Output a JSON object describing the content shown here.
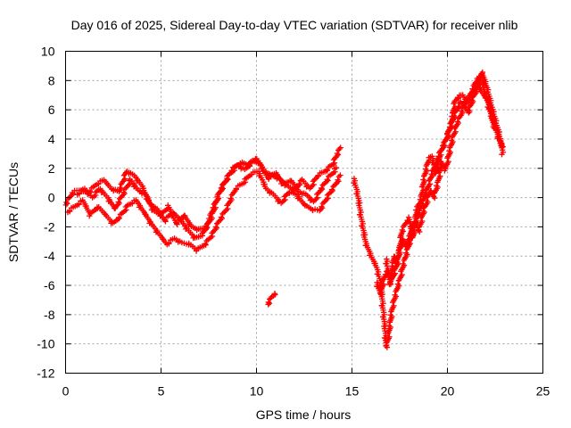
{
  "chart_data": {
    "type": "scatter",
    "title": "Day 016 of 2025, Sidereal Day-to-day VTEC variation (SDTVAR) for receiver nlib",
    "xlabel": "GPS time / hours",
    "ylabel": "SDTVAR / TECUs",
    "xlim": [
      0,
      25
    ],
    "ylim": [
      -12,
      10
    ],
    "xticks": [
      0,
      5,
      10,
      15,
      20,
      25
    ],
    "yticks": [
      -12,
      -10,
      -8,
      -6,
      -4,
      -2,
      0,
      2,
      4,
      6,
      8,
      10
    ],
    "grid": true,
    "marker": "+",
    "series": [
      {
        "name": "SDTVAR",
        "color": "#ff0000",
        "segments": [
          [
            [
              0.0,
              -0.5
            ],
            [
              0.4,
              0.4
            ],
            [
              0.8,
              0.5
            ],
            [
              1.2,
              0.3
            ],
            [
              1.6,
              0.9
            ],
            [
              2.0,
              1.2
            ],
            [
              2.4,
              0.6
            ],
            [
              2.8,
              0.4
            ],
            [
              3.2,
              1.8
            ],
            [
              3.6,
              1.5
            ],
            [
              4.0,
              0.8
            ],
            [
              4.4,
              -0.4
            ],
            [
              4.8,
              -0.8
            ],
            [
              5.2,
              -1.6
            ],
            [
              5.6,
              -1.0
            ],
            [
              6.0,
              -1.5
            ],
            [
              6.4,
              -2.2
            ],
            [
              6.8,
              -2.8
            ],
            [
              7.2,
              -2.5
            ],
            [
              7.6,
              -1.5
            ],
            [
              8.0,
              0.1
            ],
            [
              8.4,
              1.2
            ],
            [
              8.8,
              2.0
            ],
            [
              9.2,
              2.4
            ],
            [
              9.6,
              2.2
            ],
            [
              10.0,
              2.7
            ],
            [
              10.4,
              1.8
            ],
            [
              10.8,
              1.5
            ],
            [
              11.2,
              1.3
            ],
            [
              11.6,
              0.8
            ],
            [
              12.0,
              0.5
            ],
            [
              12.4,
              1.2
            ],
            [
              12.8,
              0.6
            ],
            [
              13.2,
              1.5
            ],
            [
              13.6,
              1.8
            ],
            [
              14.0,
              2.3
            ],
            [
              14.4,
              3.4
            ]
          ],
          [
            [
              0.1,
              -1.0
            ],
            [
              0.5,
              -0.6
            ],
            [
              0.9,
              -0.2
            ],
            [
              1.3,
              -1.2
            ],
            [
              1.7,
              -0.6
            ],
            [
              2.1,
              -1.2
            ],
            [
              2.5,
              -1.8
            ],
            [
              2.9,
              -1.2
            ],
            [
              3.3,
              -0.5
            ],
            [
              3.7,
              -0.2
            ],
            [
              4.1,
              -1.0
            ],
            [
              4.5,
              -1.8
            ],
            [
              4.9,
              -2.5
            ],
            [
              5.3,
              -3.2
            ],
            [
              5.7,
              -2.8
            ],
            [
              6.1,
              -3.1
            ],
            [
              6.5,
              -3.2
            ],
            [
              6.9,
              -3.6
            ],
            [
              7.3,
              -3.2
            ],
            [
              7.7,
              -2.5
            ],
            [
              8.1,
              -1.5
            ],
            [
              8.5,
              -0.6
            ],
            [
              8.9,
              0.6
            ],
            [
              9.3,
              1.0
            ],
            [
              9.7,
              1.6
            ],
            [
              10.1,
              1.8
            ],
            [
              10.5,
              0.6
            ],
            [
              10.9,
              0.2
            ],
            [
              11.3,
              -0.4
            ],
            [
              11.7,
              0.4
            ],
            [
              12.1,
              0.2
            ],
            [
              12.5,
              -0.5
            ],
            [
              12.9,
              -0.8
            ],
            [
              13.3,
              -0.9
            ],
            [
              13.7,
              0.0
            ],
            [
              14.1,
              0.8
            ],
            [
              14.4,
              1.5
            ]
          ],
          [
            [
              0.6,
              0.2
            ],
            [
              1.0,
              0.6
            ],
            [
              1.4,
              0.0
            ],
            [
              1.8,
              0.6
            ],
            [
              2.2,
              0.0
            ],
            [
              2.6,
              -0.8
            ],
            [
              3.0,
              0.2
            ],
            [
              3.4,
              1.2
            ],
            [
              3.8,
              0.5
            ],
            [
              4.2,
              0.2
            ],
            [
              4.6,
              -0.9
            ],
            [
              5.0,
              -1.2
            ],
            [
              5.4,
              -0.6
            ],
            [
              5.8,
              -1.8
            ],
            [
              6.2,
              -1.2
            ],
            [
              6.6,
              -2.0
            ],
            [
              7.0,
              -2.2
            ],
            [
              7.4,
              -2.0
            ],
            [
              7.8,
              -0.5
            ],
            [
              8.2,
              0.7
            ],
            [
              8.6,
              1.6
            ],
            [
              9.0,
              2.2
            ],
            [
              9.4,
              1.9
            ],
            [
              9.8,
              2.5
            ],
            [
              10.2,
              2.3
            ],
            [
              10.6,
              1.3
            ],
            [
              11.0,
              1.7
            ],
            [
              11.4,
              0.9
            ],
            [
              11.8,
              1.2
            ],
            [
              12.2,
              0.4
            ],
            [
              12.6,
              0.2
            ],
            [
              13.0,
              -0.3
            ],
            [
              13.4,
              0.6
            ],
            [
              13.8,
              1.4
            ],
            [
              14.2,
              2.0
            ]
          ],
          [
            [
              10.6,
              -7.3
            ],
            [
              10.8,
              -6.8
            ],
            [
              11.0,
              -6.5
            ]
          ],
          [
            [
              15.1,
              1.3
            ],
            [
              15.3,
              0.2
            ],
            [
              15.5,
              -1.5
            ],
            [
              15.7,
              -3.0
            ],
            [
              16.0,
              -4.0
            ],
            [
              16.3,
              -4.8
            ],
            [
              16.5,
              -5.8
            ],
            [
              16.6,
              -7.2
            ],
            [
              16.7,
              -8.6
            ],
            [
              16.8,
              -10.2
            ],
            [
              16.9,
              -9.6
            ],
            [
              17.0,
              -8.7
            ],
            [
              17.1,
              -7.6
            ],
            [
              17.3,
              -6.6
            ],
            [
              17.5,
              -5.6
            ],
            [
              17.7,
              -4.6
            ],
            [
              17.9,
              -3.6
            ],
            [
              18.1,
              -2.6
            ],
            [
              18.3,
              -1.9
            ],
            [
              18.5,
              -1.0
            ],
            [
              18.7,
              -0.5
            ],
            [
              18.9,
              0.4
            ],
            [
              19.1,
              1.2
            ],
            [
              19.3,
              2.0
            ],
            [
              19.5,
              2.6
            ],
            [
              19.7,
              3.2
            ],
            [
              19.9,
              3.8
            ],
            [
              20.1,
              4.6
            ],
            [
              20.3,
              5.3
            ],
            [
              20.5,
              6.0
            ],
            [
              20.7,
              6.5
            ],
            [
              20.9,
              6.2
            ],
            [
              21.1,
              5.8
            ],
            [
              21.3,
              6.6
            ],
            [
              21.5,
              7.3
            ],
            [
              21.7,
              8.0
            ],
            [
              21.8,
              8.6
            ],
            [
              21.9,
              8.2
            ],
            [
              22.1,
              7.4
            ],
            [
              22.3,
              6.3
            ],
            [
              22.5,
              5.4
            ],
            [
              22.7,
              4.4
            ],
            [
              22.9,
              3.0
            ]
          ],
          [
            [
              16.3,
              -5.8
            ],
            [
              16.5,
              -6.6
            ],
            [
              16.7,
              -5.4
            ],
            [
              16.9,
              -5.0
            ],
            [
              17.1,
              -5.6
            ],
            [
              17.3,
              -4.8
            ],
            [
              17.5,
              -3.6
            ],
            [
              17.7,
              -2.9
            ],
            [
              17.9,
              -3.4
            ],
            [
              18.1,
              -2.2
            ],
            [
              18.3,
              -1.6
            ],
            [
              18.5,
              -2.3
            ],
            [
              18.7,
              -1.2
            ],
            [
              18.9,
              -0.4
            ],
            [
              19.1,
              0.5
            ],
            [
              19.3,
              0.0
            ],
            [
              19.5,
              1.0
            ],
            [
              19.7,
              2.4
            ],
            [
              19.9,
              1.9
            ],
            [
              20.1,
              3.0
            ],
            [
              20.3,
              4.2
            ],
            [
              20.5,
              5.0
            ],
            [
              20.7,
              5.6
            ],
            [
              20.9,
              6.6
            ],
            [
              21.1,
              6.8
            ],
            [
              21.3,
              6.9
            ],
            [
              21.5,
              7.8
            ],
            [
              21.7,
              7.4
            ],
            [
              21.9,
              7.0
            ],
            [
              22.1,
              6.8
            ],
            [
              22.3,
              5.8
            ],
            [
              22.5,
              4.8
            ],
            [
              22.7,
              4.0
            ],
            [
              22.9,
              3.4
            ]
          ],
          [
            [
              16.8,
              -4.2
            ],
            [
              17.0,
              -6.0
            ],
            [
              17.2,
              -4.0
            ],
            [
              17.4,
              -4.5
            ],
            [
              17.6,
              -2.4
            ],
            [
              17.8,
              -1.8
            ],
            [
              18.0,
              -1.4
            ],
            [
              18.2,
              -2.8
            ],
            [
              18.4,
              -0.8
            ],
            [
              18.6,
              -0.2
            ],
            [
              18.8,
              1.4
            ],
            [
              19.0,
              2.6
            ],
            [
              19.2,
              2.8
            ],
            [
              19.4,
              1.6
            ],
            [
              19.6,
              3.0
            ],
            [
              19.8,
              3.6
            ],
            [
              20.0,
              4.2
            ],
            [
              20.2,
              5.0
            ],
            [
              20.4,
              6.6
            ],
            [
              20.6,
              6.9
            ],
            [
              20.8,
              7.0
            ],
            [
              21.0,
              6.4
            ],
            [
              21.2,
              7.0
            ],
            [
              21.4,
              7.6
            ],
            [
              21.6,
              8.2
            ],
            [
              21.8,
              8.0
            ],
            [
              22.0,
              7.0
            ],
            [
              22.2,
              6.0
            ],
            [
              22.4,
              5.0
            ],
            [
              22.6,
              4.6
            ],
            [
              22.8,
              3.6
            ]
          ]
        ]
      }
    ]
  }
}
